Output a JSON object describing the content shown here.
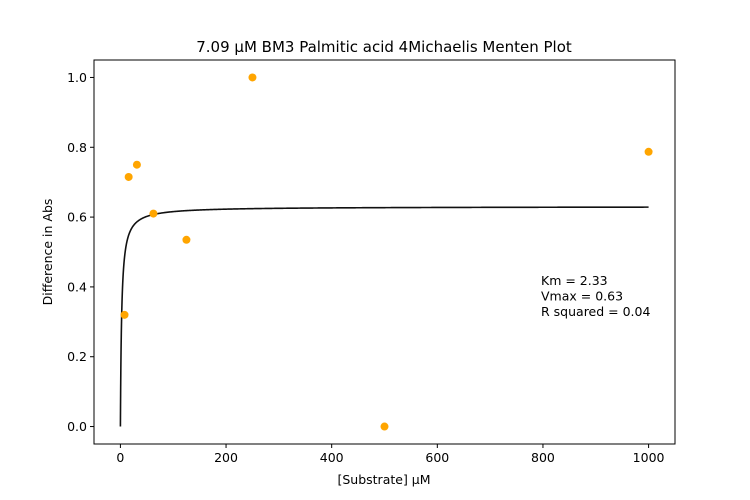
{
  "chart_data": {
    "type": "scatter",
    "title": "7.09 µM BM3 Palmitic acid 4Michaelis Menten Plot",
    "xlabel": "[Substrate] µM",
    "ylabel": "Difference in Abs",
    "xlim": [
      -50,
      1050
    ],
    "ylim": [
      -0.05,
      1.05
    ],
    "xticks": [
      0,
      200,
      400,
      600,
      800,
      1000
    ],
    "xtick_labels": [
      "0",
      "200",
      "400",
      "600",
      "800",
      "1000"
    ],
    "yticks": [
      0.0,
      0.2,
      0.4,
      0.6,
      0.8,
      1.0
    ],
    "ytick_labels": [
      "0.0",
      "0.2",
      "0.4",
      "0.6",
      "0.8",
      "1.0"
    ],
    "grid": false,
    "points": {
      "color": "#ffa500",
      "x": [
        7.8125,
        15.625,
        31.25,
        62.5,
        125,
        250,
        500,
        1000
      ],
      "y": [
        0.32,
        0.715,
        0.75,
        0.61,
        0.535,
        1.0,
        0.0,
        0.787
      ]
    },
    "fit": {
      "model": "michaelis-menten",
      "color": "#111111",
      "km": 2.33,
      "vmax": 0.63,
      "x_range": [
        0,
        1000
      ]
    },
    "annotation": [
      "Km = 2.33",
      "Vmax = 0.63",
      "R squared = 0.04"
    ]
  }
}
